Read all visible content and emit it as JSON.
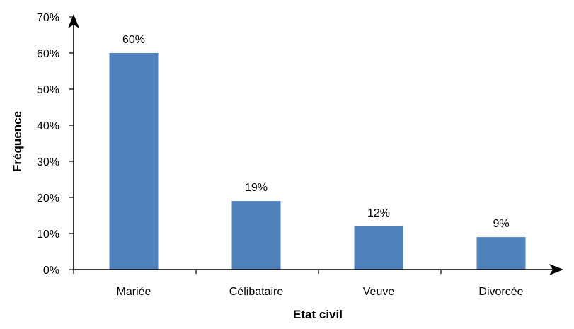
{
  "chart_data": {
    "type": "bar",
    "categories": [
      "Mariée",
      "Célibataire",
      "Veuve",
      "Divorcée"
    ],
    "values": [
      60,
      19,
      12,
      9
    ],
    "data_labels": [
      "60%",
      "19%",
      "12%",
      "9%"
    ],
    "title": "",
    "xlabel": "Etat civil",
    "ylabel": "Fréquence",
    "ylim": [
      0,
      70
    ],
    "yticks": [
      "0%",
      "10%",
      "20%",
      "30%",
      "40%",
      "50%",
      "60%",
      "70%"
    ],
    "grid": false,
    "legend": "none",
    "bar_color": "#4f81bd"
  }
}
